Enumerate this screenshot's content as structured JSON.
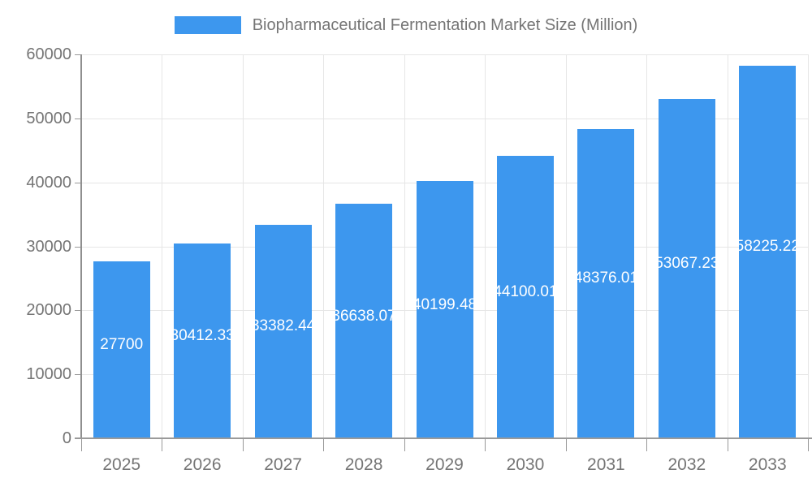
{
  "legend": {
    "label": "Biopharmaceutical Fermentation Market Size (Million)"
  },
  "colors": {
    "bar": "#3D97EE",
    "axis_text": "#757575",
    "gridline": "#e6e6e6",
    "axis_line": "#999999",
    "value_label": "#ffffff"
  },
  "chart_data": {
    "type": "bar",
    "title": "Biopharmaceutical Fermentation Market Size (Million)",
    "categories": [
      "2025",
      "2026",
      "2027",
      "2028",
      "2029",
      "2030",
      "2031",
      "2032",
      "2033"
    ],
    "values": [
      27700,
      30412.33,
      33382.44,
      36638.07,
      40199.48,
      44100.01,
      48376.01,
      53067.23,
      58225.22
    ],
    "bar_labels": [
      "27700",
      "30412.33",
      "33382.44",
      "36638.07",
      "40199.48",
      "44100.01",
      "48376.01",
      "53067.23",
      "58225.22"
    ],
    "y_ticks": [
      "0",
      "10000",
      "20000",
      "30000",
      "40000",
      "50000",
      "60000"
    ],
    "y_tick_values": [
      0,
      10000,
      20000,
      30000,
      40000,
      50000,
      60000
    ],
    "ylim": [
      0,
      60000
    ],
    "xlabel": "",
    "ylabel": "",
    "grid": true,
    "legend_position": "top"
  }
}
